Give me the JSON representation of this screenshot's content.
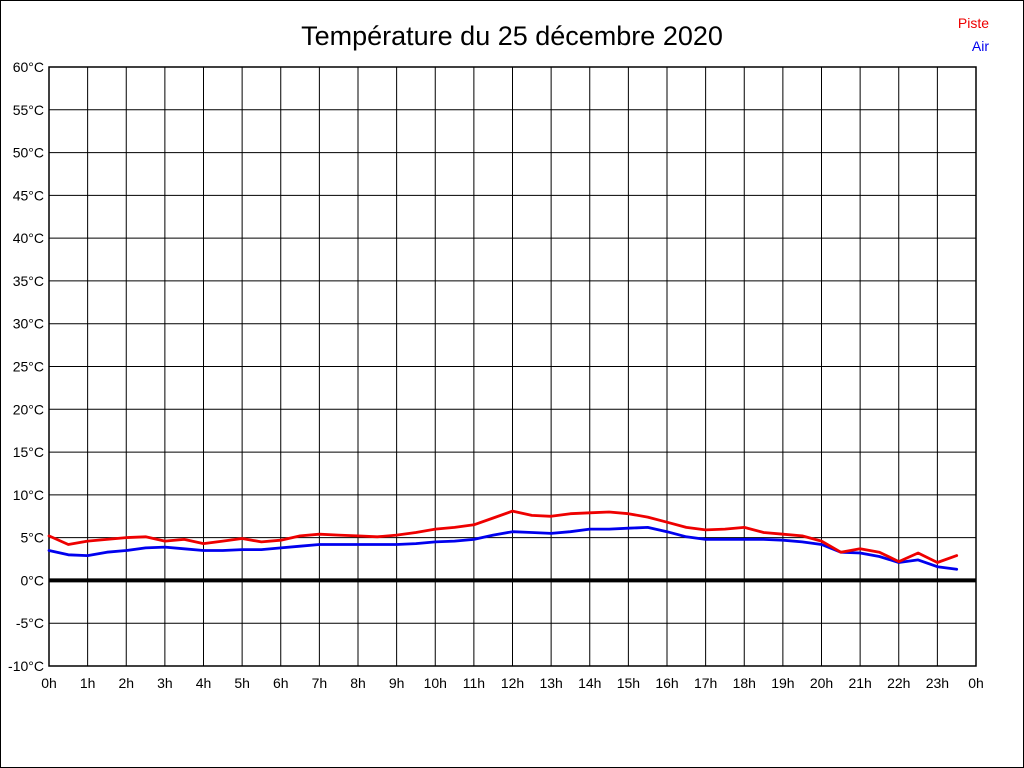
{
  "chart_data": {
    "type": "line",
    "title": "Température du 25 décembre 2020",
    "xlabel": "",
    "ylabel": "",
    "xlim": [
      0,
      24
    ],
    "ylim": [
      -10,
      60
    ],
    "x_tick_step_hours": 1,
    "y_tick_step_degrees": 5,
    "grid": true,
    "legend_position": "top-right",
    "zero_line_value": 0,
    "x_tick_labels": [
      "0h",
      "1h",
      "2h",
      "3h",
      "4h",
      "5h",
      "6h",
      "7h",
      "8h",
      "9h",
      "10h",
      "11h",
      "12h",
      "13h",
      "14h",
      "15h",
      "16h",
      "17h",
      "18h",
      "19h",
      "20h",
      "21h",
      "22h",
      "23h",
      "0h"
    ],
    "y_tick_labels": [
      "60°C",
      "55°C",
      "50°C",
      "45°C",
      "40°C",
      "35°C",
      "30°C",
      "25°C",
      "20°C",
      "15°C",
      "10°C",
      "5°C",
      "0°C",
      "-5°C",
      "-10°C"
    ],
    "x_hours": [
      0,
      0.5,
      1,
      1.5,
      2,
      2.5,
      3,
      3.5,
      4,
      4.5,
      5,
      5.5,
      6,
      6.5,
      7,
      7.5,
      8,
      8.5,
      9,
      9.5,
      10,
      10.5,
      11,
      11.5,
      12,
      12.5,
      13,
      13.5,
      14,
      14.5,
      15,
      15.5,
      16,
      16.5,
      17,
      17.5,
      18,
      18.5,
      19,
      19.5,
      20,
      20.5,
      21,
      21.5,
      22,
      22.5,
      23,
      23.5
    ],
    "series": [
      {
        "name": "Air",
        "color": "#0000ee",
        "values": [
          3.5,
          3.0,
          2.9,
          3.3,
          3.5,
          3.8,
          3.9,
          3.7,
          3.5,
          3.5,
          3.6,
          3.6,
          3.8,
          4.0,
          4.2,
          4.2,
          4.2,
          4.2,
          4.2,
          4.3,
          4.5,
          4.6,
          4.8,
          5.3,
          5.7,
          5.6,
          5.5,
          5.7,
          6.0,
          6.0,
          6.1,
          6.2,
          5.7,
          5.1,
          4.8,
          4.8,
          4.8,
          4.8,
          4.7,
          4.5,
          4.2,
          3.3,
          3.2,
          2.8,
          2.1,
          2.4,
          1.6,
          1.3
        ]
      },
      {
        "name": "Piste",
        "color": "#ee0000",
        "values": [
          5.2,
          4.2,
          4.6,
          4.8,
          5.0,
          5.1,
          4.6,
          4.8,
          4.3,
          4.6,
          4.9,
          4.5,
          4.7,
          5.2,
          5.4,
          5.3,
          5.2,
          5.1,
          5.3,
          5.6,
          6.0,
          6.2,
          6.5,
          7.3,
          8.1,
          7.6,
          7.5,
          7.8,
          7.9,
          8.0,
          7.8,
          7.4,
          6.8,
          6.2,
          5.9,
          6.0,
          6.2,
          5.6,
          5.4,
          5.2,
          4.6,
          3.3,
          3.7,
          3.3,
          2.2,
          3.2,
          2.1,
          2.9
        ]
      }
    ],
    "legend_order": [
      "Piste",
      "Air"
    ],
    "axis_color": "#000000",
    "grid_color": "#000000",
    "background_color": "#ffffff"
  }
}
